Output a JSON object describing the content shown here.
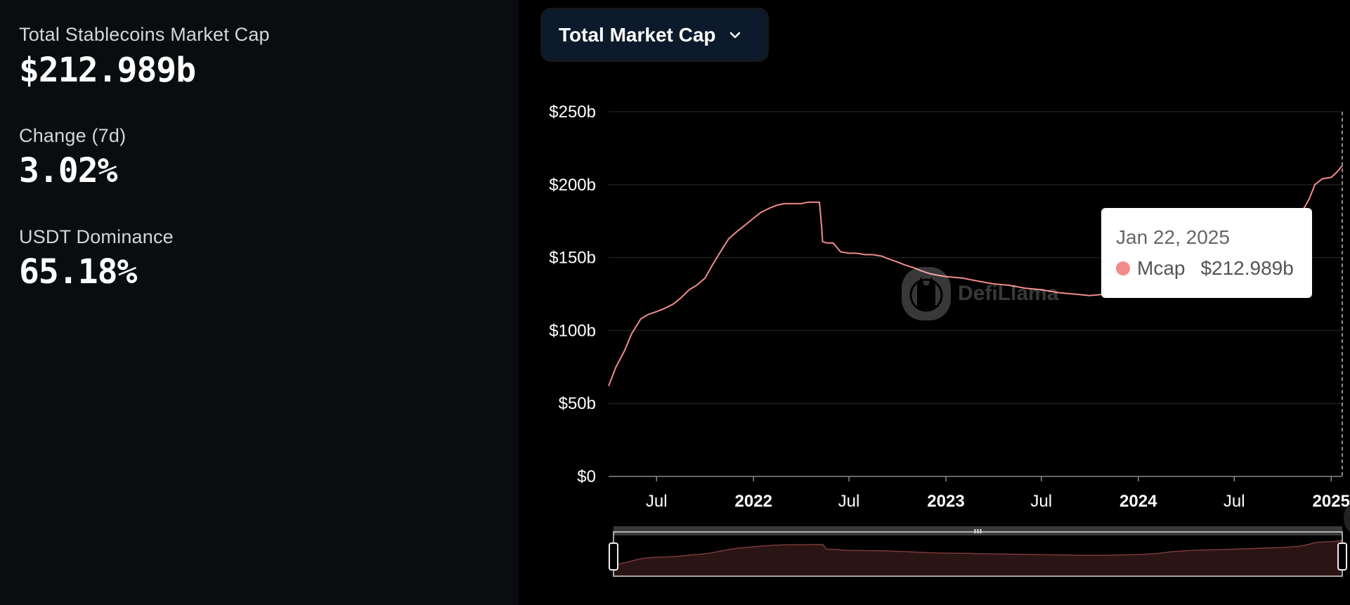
{
  "stats": {
    "total_label": "Total Stablecoins Market Cap",
    "total_value": "$212.989b",
    "change_label": "Change (7d)",
    "change_value": "3.02%",
    "dominance_label": "USDT Dominance",
    "dominance_value": "65.18%"
  },
  "metric_select": {
    "label": "Total Market Cap",
    "icon": "chevron-down-icon"
  },
  "watermark": {
    "text": "DefiLlama",
    "icon": "llama-logo-icon"
  },
  "tooltip": {
    "date": "Jan 22, 2025",
    "series": "Mcap",
    "value": "$212.989b",
    "color": "#f28b8b"
  },
  "colors": {
    "line": "#f28b8b",
    "slider_fill": "#2b1414",
    "grid": "#1e1e1e",
    "axis": "#8a8a8a"
  },
  "chart_data": {
    "type": "line",
    "y_tick_labels": [
      "$0",
      "$50b",
      "$100b",
      "$150b",
      "$200b",
      "$250b"
    ],
    "ylim": [
      0,
      250
    ],
    "y_unit": "$b",
    "x_tick_labels": [
      "Jul",
      "2022",
      "Jul",
      "2023",
      "Jul",
      "2024",
      "Jul",
      "2025"
    ],
    "x_tick_dates": [
      "2021-07-01",
      "2022-01-01",
      "2022-07-01",
      "2023-01-01",
      "2023-07-01",
      "2024-01-01",
      "2024-07-01",
      "2025-01-01"
    ],
    "xlim": [
      "2021-04-01",
      "2025-01-22"
    ],
    "grid": true,
    "series": [
      {
        "name": "Mcap",
        "points": [
          [
            "2021-04-01",
            62
          ],
          [
            "2021-04-15",
            75
          ],
          [
            "2021-05-01",
            86
          ],
          [
            "2021-05-15",
            98
          ],
          [
            "2021-06-01",
            108
          ],
          [
            "2021-06-15",
            111
          ],
          [
            "2021-07-01",
            113
          ],
          [
            "2021-07-15",
            115
          ],
          [
            "2021-08-01",
            118
          ],
          [
            "2021-08-15",
            122
          ],
          [
            "2021-09-01",
            128
          ],
          [
            "2021-09-15",
            131
          ],
          [
            "2021-10-01",
            136
          ],
          [
            "2021-10-15",
            145
          ],
          [
            "2021-11-01",
            155
          ],
          [
            "2021-11-15",
            163
          ],
          [
            "2021-12-01",
            168
          ],
          [
            "2021-12-15",
            172
          ],
          [
            "2022-01-01",
            177
          ],
          [
            "2022-01-15",
            181
          ],
          [
            "2022-02-01",
            184
          ],
          [
            "2022-02-15",
            186
          ],
          [
            "2022-03-01",
            187
          ],
          [
            "2022-03-15",
            187
          ],
          [
            "2022-04-01",
            187
          ],
          [
            "2022-04-15",
            188
          ],
          [
            "2022-05-06",
            188
          ],
          [
            "2022-05-10",
            172
          ],
          [
            "2022-05-12",
            161
          ],
          [
            "2022-05-20",
            160
          ],
          [
            "2022-06-01",
            160
          ],
          [
            "2022-06-15",
            154
          ],
          [
            "2022-07-01",
            153
          ],
          [
            "2022-07-15",
            153
          ],
          [
            "2022-08-01",
            152
          ],
          [
            "2022-08-15",
            152
          ],
          [
            "2022-09-01",
            151
          ],
          [
            "2022-09-15",
            149
          ],
          [
            "2022-10-01",
            147
          ],
          [
            "2022-10-15",
            145
          ],
          [
            "2022-11-01",
            143
          ],
          [
            "2022-11-15",
            141
          ],
          [
            "2022-12-01",
            139
          ],
          [
            "2022-12-15",
            138
          ],
          [
            "2023-01-01",
            137
          ],
          [
            "2023-02-01",
            136
          ],
          [
            "2023-03-01",
            134
          ],
          [
            "2023-04-01",
            132
          ],
          [
            "2023-05-01",
            131
          ],
          [
            "2023-06-01",
            129
          ],
          [
            "2023-07-01",
            128
          ],
          [
            "2023-08-01",
            126
          ],
          [
            "2023-09-01",
            125
          ],
          [
            "2023-10-01",
            124
          ],
          [
            "2023-11-01",
            125
          ],
          [
            "2023-12-01",
            127
          ],
          [
            "2024-01-01",
            129
          ],
          [
            "2024-02-01",
            134
          ],
          [
            "2024-03-01",
            145
          ],
          [
            "2024-04-01",
            152
          ],
          [
            "2024-05-01",
            156
          ],
          [
            "2024-06-01",
            158
          ],
          [
            "2024-07-01",
            161
          ],
          [
            "2024-08-01",
            164
          ],
          [
            "2024-09-01",
            168
          ],
          [
            "2024-10-01",
            171
          ],
          [
            "2024-11-01",
            178
          ],
          [
            "2024-11-20",
            190
          ],
          [
            "2024-12-01",
            200
          ],
          [
            "2024-12-15",
            204
          ],
          [
            "2025-01-01",
            205
          ],
          [
            "2025-01-10",
            208
          ],
          [
            "2025-01-15",
            210
          ],
          [
            "2025-01-22",
            212.989
          ]
        ]
      }
    ]
  }
}
